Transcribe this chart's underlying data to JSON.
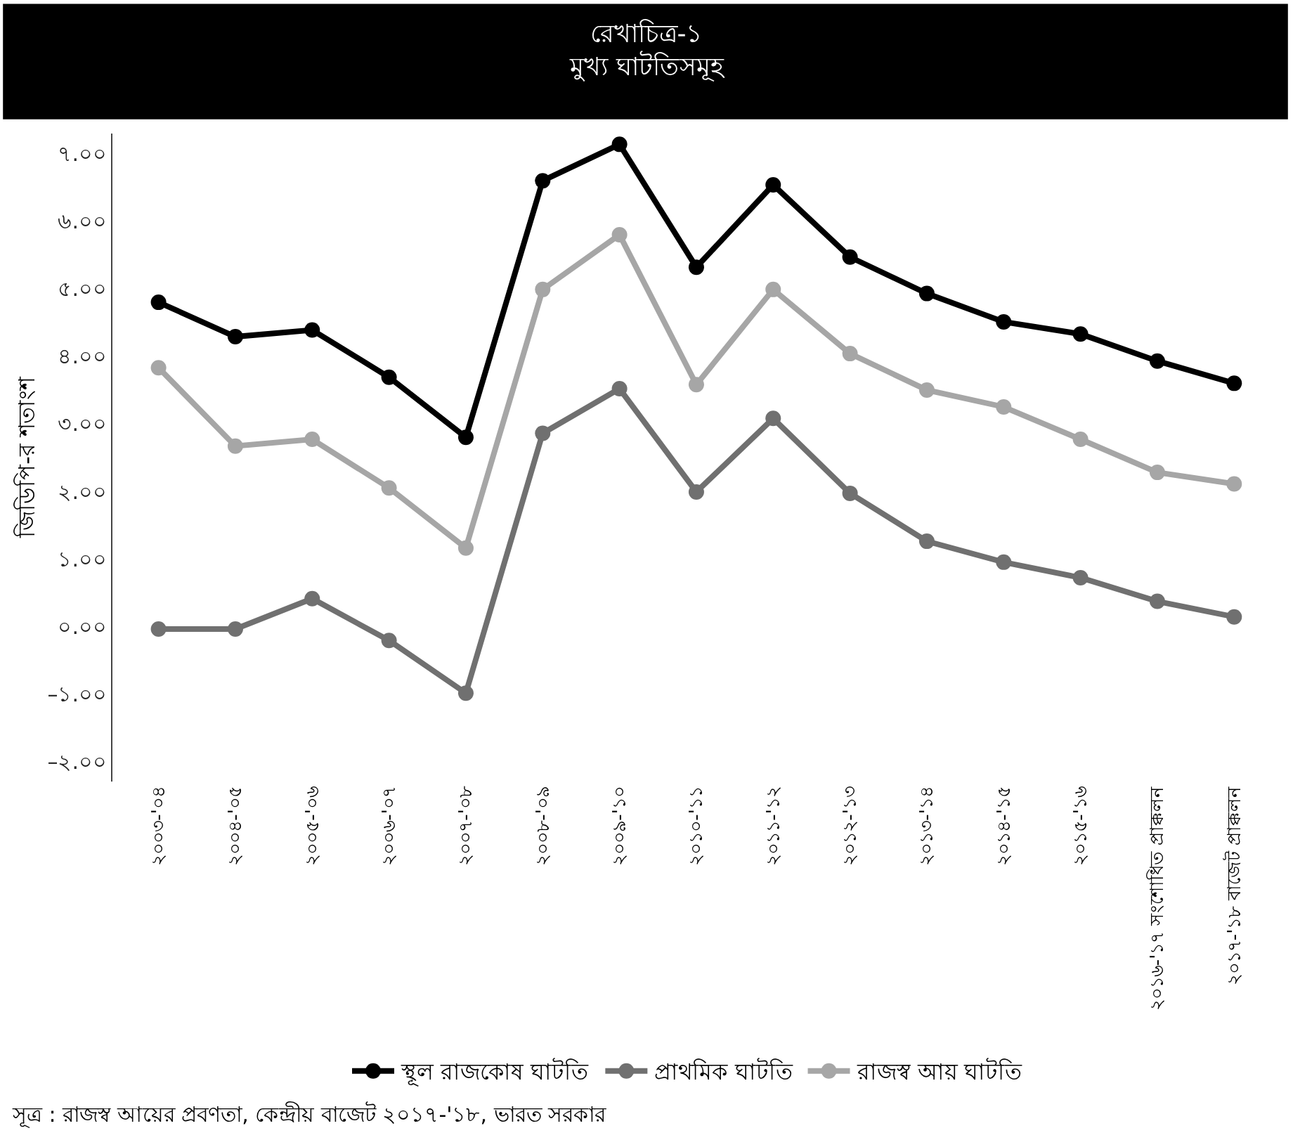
{
  "chart_data": {
    "type": "line",
    "title": "রেখাচিত্র-১\nমুখ্য ঘাটতিসমূহ",
    "ylabel": "জিডিপি-র শতাংশ",
    "categories": [
      "২০০৩-'০৪",
      "২০০৪-'০৫",
      "২০০৫-'০৬",
      "২০০৬-'০৭",
      "২০০৭-'০৮",
      "২০০৮-'০৯",
      "২০০৯-'১০",
      "২০১০-'১১",
      "২০১১-'১২",
      "২০১২-'১৩",
      "২০১৩-'১৪",
      "২০১৪-'১৫",
      "২০১৫-'১৬",
      "২০১৬-'১৭ সংশোধিত প্রাক্কলন",
      "২০১৭-'১৮ বাজেট প্রাক্কলন"
    ],
    "series": [
      {
        "name": "স্থূল রাজকোষ ঘাটতি",
        "color": "#000000",
        "values": [
          4.8,
          4.29,
          4.39,
          3.69,
          2.8,
          6.6,
          7.14,
          5.32,
          6.54,
          5.47,
          4.93,
          4.51,
          4.33,
          3.93,
          3.6
        ]
      },
      {
        "name": "প্রাথমিক ঘাটতি",
        "color": "#707070",
        "values": [
          -0.04,
          -0.04,
          0.41,
          -0.21,
          -0.99,
          2.86,
          3.52,
          1.99,
          3.08,
          1.97,
          1.26,
          0.95,
          0.72,
          0.37,
          0.14
        ]
      },
      {
        "name": "রাজস্ব আয় ঘাটতি",
        "color": "#a6a6a6",
        "values": [
          3.83,
          2.67,
          2.77,
          2.05,
          1.16,
          4.99,
          5.8,
          3.58,
          4.99,
          4.04,
          3.5,
          3.25,
          2.77,
          2.28,
          2.11
        ]
      }
    ],
    "ylim": [
      -2.3,
      7.3
    ],
    "yticks": [
      {
        "value": -2,
        "label": "–২.০০"
      },
      {
        "value": -1,
        "label": "–১.০০"
      },
      {
        "value": 0,
        "label": "০.০০"
      },
      {
        "value": 1,
        "label": "১.০০"
      },
      {
        "value": 2,
        "label": "২.০০"
      },
      {
        "value": 3,
        "label": "৩.০০"
      },
      {
        "value": 4,
        "label": "৪.০০"
      },
      {
        "value": 5,
        "label": "৫.০০"
      },
      {
        "value": 6,
        "label": "৬.০০"
      },
      {
        "value": 7,
        "label": "৭.০০"
      }
    ],
    "legend": "bottom",
    "marker": "circle",
    "line_style": "solid",
    "annotations": [
      "সূত্র : রাজস্ব আয়ের প্রবণতা, কেন্দ্রীয় বাজেট ২০১৭-'১৮, ভারত সরকার"
    ]
  }
}
